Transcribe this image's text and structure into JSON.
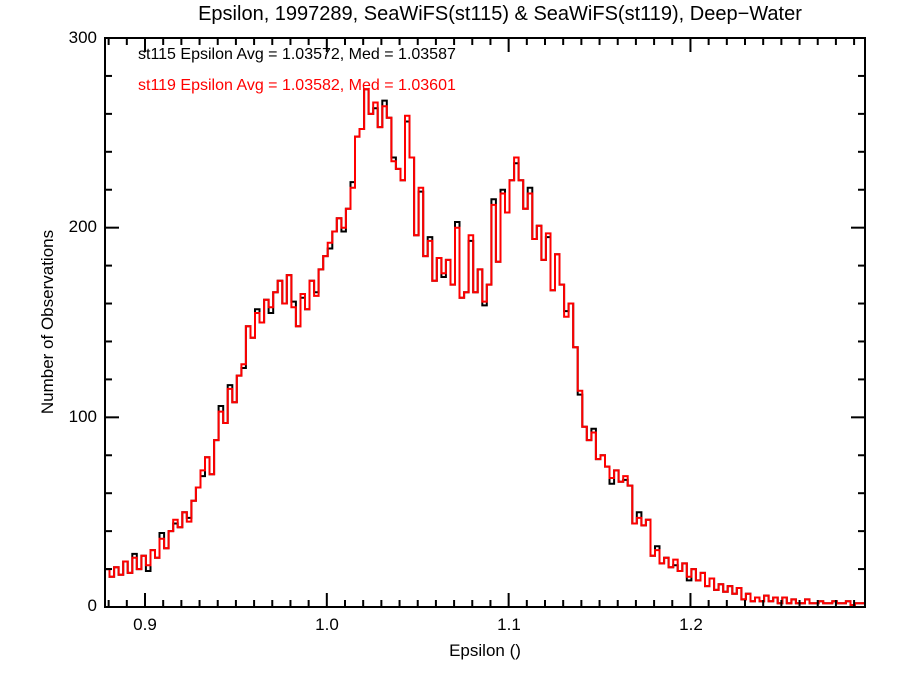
{
  "chart_data": {
    "type": "line",
    "subtype": "overlaid-step-histograms",
    "title": "Epsilon, 1997289, SeaWiFS(st115) & SeaWiFS(st119), Deep−Water",
    "xlabel": "Epsilon ()",
    "ylabel": "Number of Observations",
    "xlim": [
      0.878,
      1.296
    ],
    "ylim": [
      0,
      300
    ],
    "x_ticks": [
      0.9,
      1.0,
      1.1,
      1.2
    ],
    "x_tick_labels": [
      "0.9",
      "1.0",
      "1.1",
      "1.2"
    ],
    "x_minor_step": 0.01,
    "y_ticks": [
      0,
      100,
      200,
      300
    ],
    "y_tick_labels": [
      "0",
      "100",
      "200",
      "300"
    ],
    "y_minor_step": 20,
    "grid": false,
    "legend_position": "top-left-inside",
    "bin_start": 0.878,
    "bin_width": 0.0025,
    "legend": [
      {
        "text": "st115 Epsilon Avg = 1.03572, Med = 1.03587",
        "color": "#000000"
      },
      {
        "text": "st119 Epsilon Avg = 1.03582, Med = 1.03601",
        "color": "#ff0000"
      }
    ],
    "series": [
      {
        "name": "st115",
        "color": "#000000",
        "avg": 1.03572,
        "med": 1.03587,
        "values": [
          20,
          16,
          21,
          17,
          24,
          18,
          28,
          20,
          27,
          19,
          30,
          26,
          39,
          31,
          40,
          44,
          42,
          50,
          47,
          56,
          63,
          69,
          79,
          70,
          88,
          106,
          97,
          117,
          108,
          122,
          126,
          148,
          142,
          157,
          150,
          162,
          155,
          166,
          172,
          160,
          175,
          161,
          148,
          163,
          157,
          172,
          166,
          178,
          185,
          189,
          198,
          205,
          198,
          210,
          224,
          248,
          252,
          273,
          260,
          263,
          253,
          267,
          258,
          237,
          231,
          225,
          256,
          237,
          196,
          219,
          185,
          195,
          172,
          184,
          174,
          183,
          170,
          203,
          163,
          166,
          193,
          166,
          178,
          159,
          170,
          215,
          182,
          220,
          208,
          225,
          234,
          225,
          210,
          221,
          194,
          201,
          183,
          195,
          167,
          186,
          170,
          156,
          160,
          137,
          112,
          95,
          88,
          94,
          78,
          80,
          74,
          65,
          72,
          66,
          67,
          64,
          44,
          50,
          43,
          46,
          27,
          32,
          23,
          26,
          21,
          22,
          19,
          23,
          14,
          20,
          14,
          18,
          11,
          15,
          9,
          12,
          8,
          11,
          7,
          10,
          4,
          7,
          3,
          5,
          3,
          6,
          3,
          5,
          2,
          5,
          2,
          4,
          2,
          2,
          4,
          2,
          2,
          3,
          2,
          2,
          3,
          2,
          2,
          3,
          1,
          2,
          2
        ]
      },
      {
        "name": "st119",
        "color": "#ff0000",
        "avg": 1.03582,
        "med": 1.03601,
        "values": [
          20,
          16,
          21,
          17,
          24,
          18,
          26,
          20,
          27,
          22,
          30,
          26,
          36,
          31,
          40,
          46,
          42,
          50,
          45,
          56,
          63,
          72,
          79,
          70,
          88,
          103,
          97,
          115,
          108,
          122,
          128,
          148,
          142,
          155,
          150,
          162,
          158,
          166,
          172,
          160,
          175,
          158,
          148,
          165,
          157,
          172,
          164,
          178,
          185,
          192,
          198,
          205,
          200,
          210,
          221,
          248,
          252,
          273,
          260,
          266,
          253,
          264,
          258,
          235,
          231,
          225,
          259,
          237,
          196,
          221,
          185,
          193,
          172,
          184,
          176,
          183,
          170,
          200,
          163,
          166,
          196,
          166,
          178,
          161,
          170,
          212,
          182,
          218,
          208,
          225,
          237,
          225,
          210,
          218,
          194,
          201,
          183,
          197,
          167,
          186,
          170,
          153,
          160,
          137,
          114,
          95,
          88,
          92,
          78,
          80,
          74,
          68,
          72,
          66,
          69,
          64,
          44,
          47,
          43,
          46,
          27,
          30,
          23,
          26,
          21,
          25,
          19,
          23,
          16,
          20,
          14,
          18,
          11,
          15,
          9,
          12,
          8,
          11,
          7,
          10,
          4,
          7,
          3,
          5,
          3,
          6,
          3,
          5,
          2,
          5,
          2,
          4,
          2,
          2,
          4,
          2,
          2,
          3,
          2,
          2,
          3,
          2,
          2,
          3,
          1,
          2,
          2
        ]
      }
    ]
  }
}
